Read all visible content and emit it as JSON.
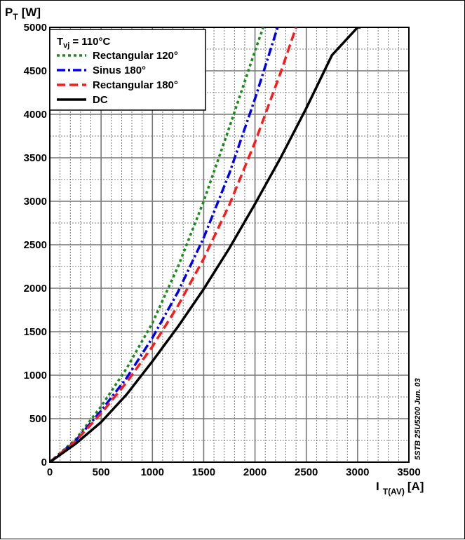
{
  "chart_data": {
    "type": "line",
    "y_axis": {
      "symbol": "P",
      "subscript": "T",
      "unit": "[W]"
    },
    "x_axis": {
      "symbol": "I",
      "subscript": "T(AV)",
      "unit": "[A]"
    },
    "xlim": [
      0,
      3500
    ],
    "ylim": [
      0,
      5000
    ],
    "x_ticks": [
      0,
      500,
      1000,
      1500,
      2000,
      2500,
      3000,
      3500
    ],
    "y_ticks": [
      0,
      500,
      1000,
      1500,
      2000,
      2500,
      3000,
      3500,
      4000,
      4500,
      5000
    ],
    "grid": true,
    "legend": {
      "position": "top-left",
      "title": {
        "symbol": "T",
        "subscript": "vj",
        "value": "= 110°C"
      }
    },
    "side_note": "5STB 25U5200 Jun. 03",
    "series": [
      {
        "name": "Rectangular 120°",
        "color": "#1a8a1a",
        "dash": "dotted",
        "x": [
          0,
          250,
          500,
          750,
          1000,
          1250,
          1500,
          1750,
          2000,
          2080
        ],
        "y": [
          0,
          260,
          640,
          1080,
          1600,
          2250,
          3000,
          3850,
          4730,
          5000
        ]
      },
      {
        "name": "Sinus 180°",
        "color": "#0000ee",
        "dash": "dashdot",
        "x": [
          0,
          250,
          500,
          750,
          1000,
          1250,
          1500,
          1750,
          2000,
          2220
        ],
        "y": [
          0,
          245,
          590,
          970,
          1430,
          1960,
          2580,
          3320,
          4180,
          5000
        ]
      },
      {
        "name": "Rectangular 180°",
        "color": "#ff1a1a",
        "dash": "dashed",
        "x": [
          0,
          250,
          500,
          750,
          1000,
          1250,
          1500,
          1750,
          2000,
          2250,
          2400
        ],
        "y": [
          0,
          240,
          560,
          920,
          1330,
          1800,
          2340,
          2960,
          3680,
          4480,
          5000
        ]
      },
      {
        "name": "DC",
        "color": "#000000",
        "dash": "solid",
        "x": [
          0,
          250,
          500,
          750,
          1000,
          1250,
          1500,
          1750,
          2000,
          2250,
          2500,
          2750,
          3000,
          3030
        ],
        "y": [
          0,
          210,
          460,
          780,
          1160,
          1560,
          1990,
          2460,
          2970,
          3500,
          4070,
          4680,
          5000,
          5000
        ]
      }
    ]
  }
}
